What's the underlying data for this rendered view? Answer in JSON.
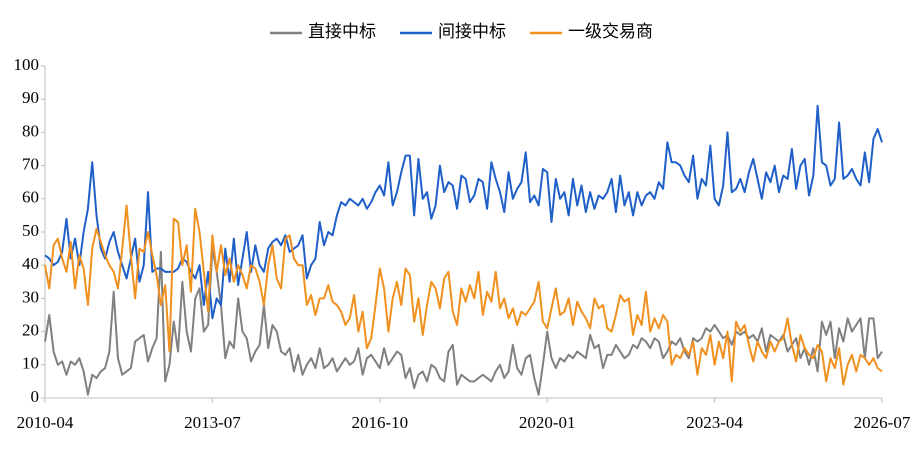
{
  "chart_data": {
    "type": "line",
    "legend": "top",
    "categories": [
      "2010-04",
      null,
      null,
      null,
      null,
      null,
      null,
      null,
      null,
      null,
      null,
      null,
      null,
      null,
      null,
      null,
      null,
      null,
      null,
      null,
      null,
      null,
      null,
      null,
      null,
      null,
      null,
      null,
      null,
      null,
      null,
      null,
      null,
      null,
      null,
      null,
      null,
      null,
      null,
      "2013-07",
      null,
      null,
      null,
      null,
      null,
      null,
      null,
      null,
      null,
      null,
      null,
      null,
      null,
      null,
      null,
      null,
      null,
      null,
      null,
      null,
      null,
      null,
      null,
      null,
      null,
      null,
      null,
      null,
      null,
      null,
      null,
      null,
      null,
      null,
      null,
      null,
      null,
      null,
      "2016-10",
      null,
      null,
      null,
      null,
      null,
      null,
      null,
      null,
      null,
      null,
      null,
      null,
      null,
      null,
      null,
      null,
      null,
      null,
      null,
      null,
      null,
      null,
      null,
      null,
      null,
      null,
      null,
      null,
      null,
      null,
      null,
      null,
      null,
      null,
      null,
      null,
      null,
      null,
      "2020-01",
      null,
      null,
      null,
      null,
      null,
      null,
      null,
      null,
      null,
      null,
      null,
      null,
      null,
      null,
      null,
      null,
      null,
      null,
      null,
      null,
      null,
      null,
      null,
      null,
      null,
      null,
      null,
      null,
      null,
      null,
      null,
      null,
      null,
      null,
      null,
      null,
      null,
      null,
      "2023-04",
      null,
      null,
      null,
      null,
      null,
      null,
      null,
      null,
      null,
      null,
      null,
      null,
      null,
      null,
      null,
      null,
      null,
      null,
      null,
      null,
      null,
      null,
      null,
      null,
      null,
      null,
      null,
      null,
      null,
      null,
      null,
      null,
      null,
      null,
      null,
      null,
      null,
      null,
      "2026-07"
    ],
    "ylim": [
      0,
      100
    ],
    "yticks": [
      0,
      10,
      20,
      30,
      40,
      50,
      60,
      70,
      80,
      90,
      100
    ],
    "series": [
      {
        "name": "直接中标",
        "color": "#808080",
        "values": [
          17,
          25,
          14,
          10,
          11,
          7,
          11,
          10,
          12,
          8,
          1,
          7,
          6,
          8,
          9,
          14,
          32,
          12,
          7,
          8,
          9,
          17,
          18,
          19,
          11,
          15,
          18,
          44,
          5,
          10,
          23,
          14,
          35,
          20,
          14,
          30,
          33,
          20,
          22,
          45,
          38,
          28,
          12,
          17,
          15,
          30,
          20,
          18,
          11,
          14,
          16,
          28,
          15,
          22,
          20,
          14,
          13,
          15,
          8,
          13,
          7,
          10,
          12,
          9,
          15,
          9,
          10,
          12,
          8,
          10,
          12,
          10,
          11,
          15,
          7,
          12,
          13,
          11,
          9,
          15,
          10,
          12,
          14,
          13,
          6,
          9,
          3,
          7,
          8,
          5,
          10,
          9,
          6,
          5,
          14,
          16,
          4,
          7,
          6,
          5,
          5,
          6,
          7,
          6,
          5,
          8,
          10,
          6,
          8,
          16,
          9,
          7,
          12,
          13,
          6,
          1,
          10,
          20,
          12,
          9,
          12,
          11,
          13,
          12,
          14,
          13,
          12,
          19,
          15,
          16,
          9,
          13,
          13,
          16,
          14,
          12,
          13,
          16,
          15,
          18,
          17,
          15,
          18,
          17,
          12,
          14,
          17,
          16,
          18,
          14,
          12,
          18,
          17,
          18,
          21,
          20,
          22,
          20,
          18,
          19,
          16,
          20,
          19,
          20,
          18,
          19,
          17,
          21,
          14,
          19,
          18,
          17,
          19,
          14,
          16,
          18,
          12,
          15,
          10,
          15,
          8,
          23,
          19,
          23,
          12,
          21,
          17,
          24,
          20,
          22,
          24,
          12,
          24,
          24,
          12,
          14
        ]
      },
      {
        "name": "间接中标",
        "color": "#1f5fc8",
        "values": [
          43,
          42,
          40,
          41,
          44,
          54,
          42,
          48,
          40,
          50,
          57,
          71,
          55,
          45,
          42,
          47,
          50,
          44,
          40,
          36,
          42,
          48,
          35,
          40,
          62,
          38,
          39,
          39,
          38,
          38,
          38,
          39,
          42,
          41,
          38,
          36,
          40,
          28,
          38,
          24,
          30,
          28,
          45,
          35,
          48,
          34,
          42,
          50,
          38,
          46,
          40,
          38,
          45,
          47,
          48,
          46,
          49,
          44,
          45,
          46,
          49,
          36,
          40,
          42,
          53,
          46,
          50,
          49,
          55,
          59,
          58,
          60,
          59,
          58,
          60,
          57,
          59,
          62,
          64,
          61,
          71,
          58,
          62,
          68,
          73,
          73,
          55,
          72,
          60,
          62,
          54,
          58,
          70,
          62,
          65,
          64,
          57,
          67,
          66,
          59,
          61,
          66,
          65,
          57,
          71,
          66,
          62,
          56,
          68,
          60,
          63,
          65,
          74,
          59,
          61,
          58,
          69,
          68,
          53,
          66,
          60,
          62,
          55,
          66,
          58,
          64,
          56,
          62,
          57,
          61,
          60,
          62,
          66,
          56,
          67,
          58,
          62,
          55,
          62,
          58,
          61,
          62,
          60,
          65,
          63,
          77,
          71,
          71,
          70,
          67,
          65,
          73,
          60,
          66,
          64,
          76,
          60,
          58,
          64,
          80,
          62,
          63,
          66,
          62,
          68,
          72,
          66,
          60,
          68,
          65,
          70,
          62,
          67,
          66,
          75,
          63,
          70,
          72,
          61,
          67,
          88,
          71,
          70,
          64,
          66,
          83,
          66,
          67,
          69,
          66,
          64,
          74,
          65,
          78,
          81,
          77
        ]
      },
      {
        "name": "一级交易商",
        "color": "#f0901e",
        "values": [
          40,
          33,
          46,
          48,
          42,
          38,
          47,
          33,
          43,
          39,
          28,
          45,
          51,
          47,
          43,
          40,
          38,
          33,
          45,
          58,
          43,
          30,
          45,
          44,
          50,
          43,
          37,
          28,
          34,
          14,
          54,
          53,
          40,
          46,
          32,
          57,
          50,
          38,
          26,
          49,
          38,
          46,
          37,
          42,
          35,
          40,
          37,
          33,
          40,
          39,
          35,
          28,
          40,
          46,
          36,
          33,
          48,
          49,
          42,
          40,
          40,
          28,
          31,
          25,
          30,
          30,
          34,
          29,
          28,
          26,
          22,
          24,
          31,
          20,
          26,
          15,
          18,
          28,
          39,
          33,
          20,
          30,
          35,
          28,
          39,
          37,
          23,
          30,
          19,
          28,
          35,
          33,
          27,
          36,
          38,
          26,
          22,
          33,
          29,
          34,
          30,
          38,
          25,
          32,
          29,
          38,
          27,
          30,
          24,
          27,
          22,
          26,
          25,
          27,
          29,
          35,
          23,
          21,
          27,
          33,
          25,
          26,
          30,
          22,
          29,
          26,
          24,
          21,
          30,
          27,
          28,
          21,
          20,
          25,
          31,
          29,
          30,
          19,
          25,
          22,
          32,
          20,
          24,
          21,
          25,
          23,
          10,
          13,
          12,
          15,
          13,
          17,
          7,
          15,
          13,
          19,
          10,
          17,
          12,
          20,
          5,
          23,
          20,
          22,
          16,
          11,
          17,
          14,
          12,
          17,
          14,
          17,
          18,
          24,
          16,
          11,
          19,
          15,
          13,
          12,
          16,
          14,
          5,
          12,
          9,
          15,
          4,
          10,
          13,
          8,
          13,
          12,
          10,
          12,
          9,
          8
        ]
      }
    ]
  }
}
